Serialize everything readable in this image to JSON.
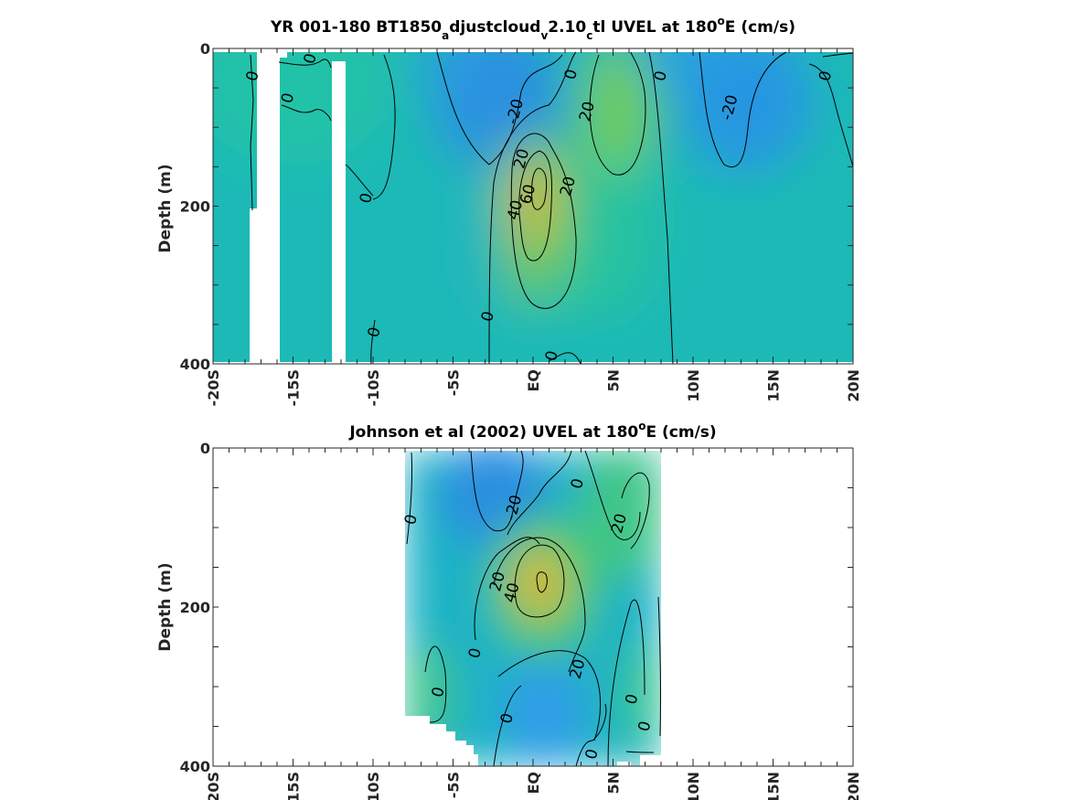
{
  "chart_data": [
    {
      "type": "heatmap",
      "title": "YR 001-180 BT1850_adjustcloud_v2.10_ctl UVEL at 180°E (cm/s)",
      "title_parts": {
        "main": "YR 001-180 BT1850",
        "sub_a": "a",
        "mid_a": "djustcloud",
        "sub_v": "v",
        "mid_v": "2.10",
        "sub_c": "c",
        "tail": "tl UVEL at 180",
        "sup": "o",
        "end": "E (cm/s)"
      },
      "ylabel": "Depth (m)",
      "xlabel": "",
      "xlim": [
        -20,
        20
      ],
      "ylim": [
        0,
        400
      ],
      "y_reversed": true,
      "colormap": "parula",
      "x_ticks": [
        -20,
        -15,
        -10,
        -5,
        0,
        5,
        10,
        15,
        20
      ],
      "x_tick_labels": [
        "-20S",
        "-15S",
        "-10S",
        "-5S",
        "EQ",
        "5N",
        "10N",
        "15N",
        "20N"
      ],
      "y_ticks": [
        0,
        200,
        400
      ],
      "y_tick_labels": [
        "0",
        "200",
        "400"
      ],
      "contour_levels": [
        -20,
        0,
        20,
        40,
        60
      ],
      "features": [
        {
          "name": "core",
          "lat": 0,
          "depth": 200,
          "value": 65
        },
        {
          "name": "surface jet 5N",
          "lat": 5,
          "depth": 80,
          "value": 35
        },
        {
          "name": "westward 2S",
          "lat": -2,
          "depth": 20,
          "value": -30
        },
        {
          "name": "westward 12N",
          "lat": 12,
          "depth": 40,
          "value": -28
        }
      ],
      "contour_labels": [
        {
          "text": "0",
          "lat": -17.5,
          "depth": 35
        },
        {
          "text": "0",
          "lat": -13.9,
          "depth": 13
        },
        {
          "text": "0",
          "lat": -15.3,
          "depth": 63
        },
        {
          "text": "0",
          "lat": -10.4,
          "depth": 190
        },
        {
          "text": "0",
          "lat": -9.9,
          "depth": 360
        },
        {
          "text": "0",
          "lat": -2.8,
          "depth": 340
        },
        {
          "text": "0",
          "lat": 1.2,
          "depth": 390
        },
        {
          "text": "-20",
          "lat": -1.1,
          "depth": 80
        },
        {
          "text": "20",
          "lat": -0.7,
          "depth": 140
        },
        {
          "text": "60",
          "lat": -0.3,
          "depth": 185
        },
        {
          "text": "40",
          "lat": -1.1,
          "depth": 205
        },
        {
          "text": "20",
          "lat": 2.2,
          "depth": 175
        },
        {
          "text": "20",
          "lat": 3.4,
          "depth": 80
        },
        {
          "text": "0",
          "lat": 2.4,
          "depth": 33
        },
        {
          "text": "0",
          "lat": 8.0,
          "depth": 35
        },
        {
          "text": "-20",
          "lat": 12.3,
          "depth": 75
        },
        {
          "text": "0",
          "lat": 18.3,
          "depth": 35
        }
      ]
    },
    {
      "type": "heatmap",
      "title": "Johnson et al (2002) UVEL at 180°E (cm/s)",
      "title_parts": {
        "main": "Johnson et al (2002) UVEL at 180",
        "sup": "o",
        "end": "E (cm/s)"
      },
      "ylabel": "Depth (m)",
      "xlabel": "",
      "xlim": [
        -20,
        20
      ],
      "ylim": [
        0,
        400
      ],
      "y_reversed": true,
      "colormap": "parula",
      "data_extent_lat": [
        -8,
        8
      ],
      "x_ticks": [
        -20,
        -15,
        -10,
        -5,
        0,
        5,
        10,
        15,
        20
      ],
      "x_tick_labels": [
        "-20S",
        "-15S",
        "-10S",
        "-5S",
        "EQ",
        "5N",
        "10N",
        "15N",
        "20N"
      ],
      "y_ticks": [
        0,
        200,
        400
      ],
      "y_tick_labels": [
        "0",
        "200",
        "400"
      ],
      "contour_levels": [
        -20,
        0,
        20,
        40
      ],
      "features": [
        {
          "name": "core",
          "lat": 0.5,
          "depth": 170,
          "value": 50
        },
        {
          "name": "westward 2S",
          "lat": -2,
          "depth": 40,
          "value": -30
        },
        {
          "name": "eastward 6N",
          "lat": 6,
          "depth": 80,
          "value": 25
        }
      ],
      "contour_labels": [
        {
          "text": "0",
          "lat": -7.6,
          "depth": 90
        },
        {
          "text": "-20",
          "lat": -1.2,
          "depth": 75
        },
        {
          "text": "0",
          "lat": 2.8,
          "depth": 45
        },
        {
          "text": "20",
          "lat": 5.4,
          "depth": 95
        },
        {
          "text": "20",
          "lat": -2.2,
          "depth": 168
        },
        {
          "text": "40",
          "lat": -1.3,
          "depth": 182
        },
        {
          "text": "20",
          "lat": 2.8,
          "depth": 278
        },
        {
          "text": "0",
          "lat": -3.6,
          "depth": 258
        },
        {
          "text": "0",
          "lat": -5.9,
          "depth": 307
        },
        {
          "text": "0",
          "lat": -1.6,
          "depth": 340
        },
        {
          "text": "0",
          "lat": 6.2,
          "depth": 316
        },
        {
          "text": "0",
          "lat": 7.0,
          "depth": 350
        },
        {
          "text": "0",
          "lat": 3.7,
          "depth": 385
        }
      ]
    }
  ]
}
